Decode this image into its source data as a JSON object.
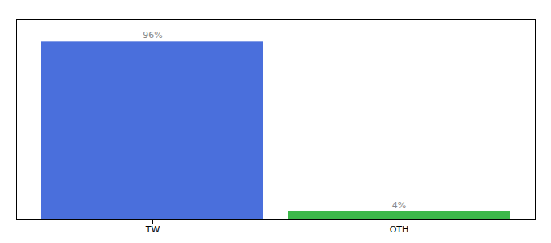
{
  "chart_data": {
    "type": "bar",
    "categories": [
      "TW",
      "OTH"
    ],
    "values": [
      96,
      4
    ],
    "value_labels": [
      "96%",
      "4%"
    ],
    "colors": [
      "#4a6fdc",
      "#3cb84a"
    ],
    "ylim": [
      0,
      108
    ],
    "grid": false,
    "data_labels": true,
    "tick_labels": "x"
  }
}
